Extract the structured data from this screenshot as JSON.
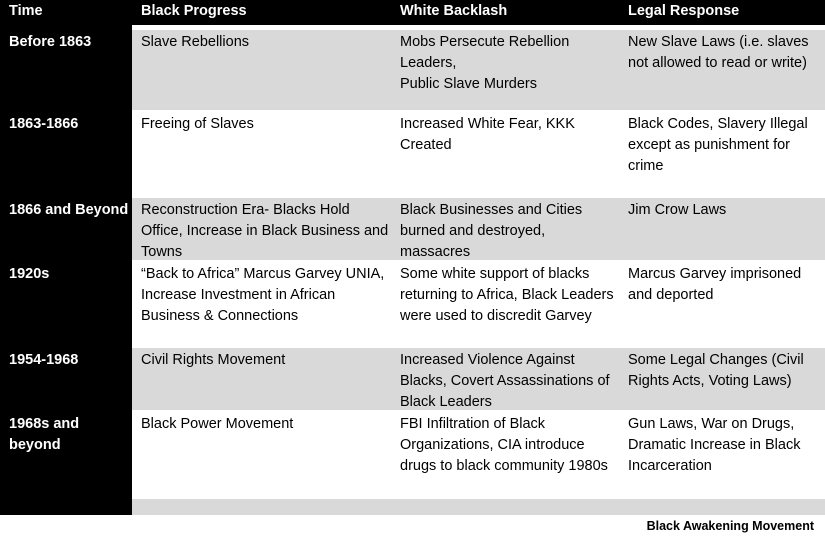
{
  "table": {
    "header": [
      "Time",
      "Black Progress",
      "White Backlash",
      "Legal Response"
    ],
    "rows": [
      [
        "Before 1863",
        "Slave Rebellions",
        "Mobs Persecute Rebellion Leaders,\nPublic Slave Murders",
        "New Slave Laws (i.e. slaves not allowed to read or write)"
      ],
      [
        "1863-1866",
        "Freeing of Slaves",
        "Increased White Fear, KKK Created",
        "Black Codes, Slavery Illegal except as punishment for crime"
      ],
      [
        "1866 and Beyond",
        "Reconstruction Era- Blacks Hold Office,  Increase in Black Business and Towns",
        "Black Businesses and Cities burned and destroyed, massacres",
        "Jim Crow Laws"
      ],
      [
        "1920s",
        "“Back to Africa” Marcus Garvey UNIA, Increase Investment in African Business & Connections",
        "Some white support of blacks returning to Africa, Black Leaders were used to discredit Garvey",
        "Marcus Garvey imprisoned and deported"
      ],
      [
        "1954-1968",
        "Civil Rights Movement",
        "Increased Violence Against Blacks, Covert Assassinations of Black Leaders",
        "Some Legal Changes (Civil Rights Acts, Voting Laws)"
      ],
      [
        "1968s and beyond",
        "Black Power Movement",
        "FBI Infiltration of Black Organizations, CIA introduce drugs to black community 1980s",
        "Gun Laws, War on Drugs, Dramatic Increase in Black Incarceration"
      ]
    ]
  },
  "footer": "Black Awakening Movement"
}
